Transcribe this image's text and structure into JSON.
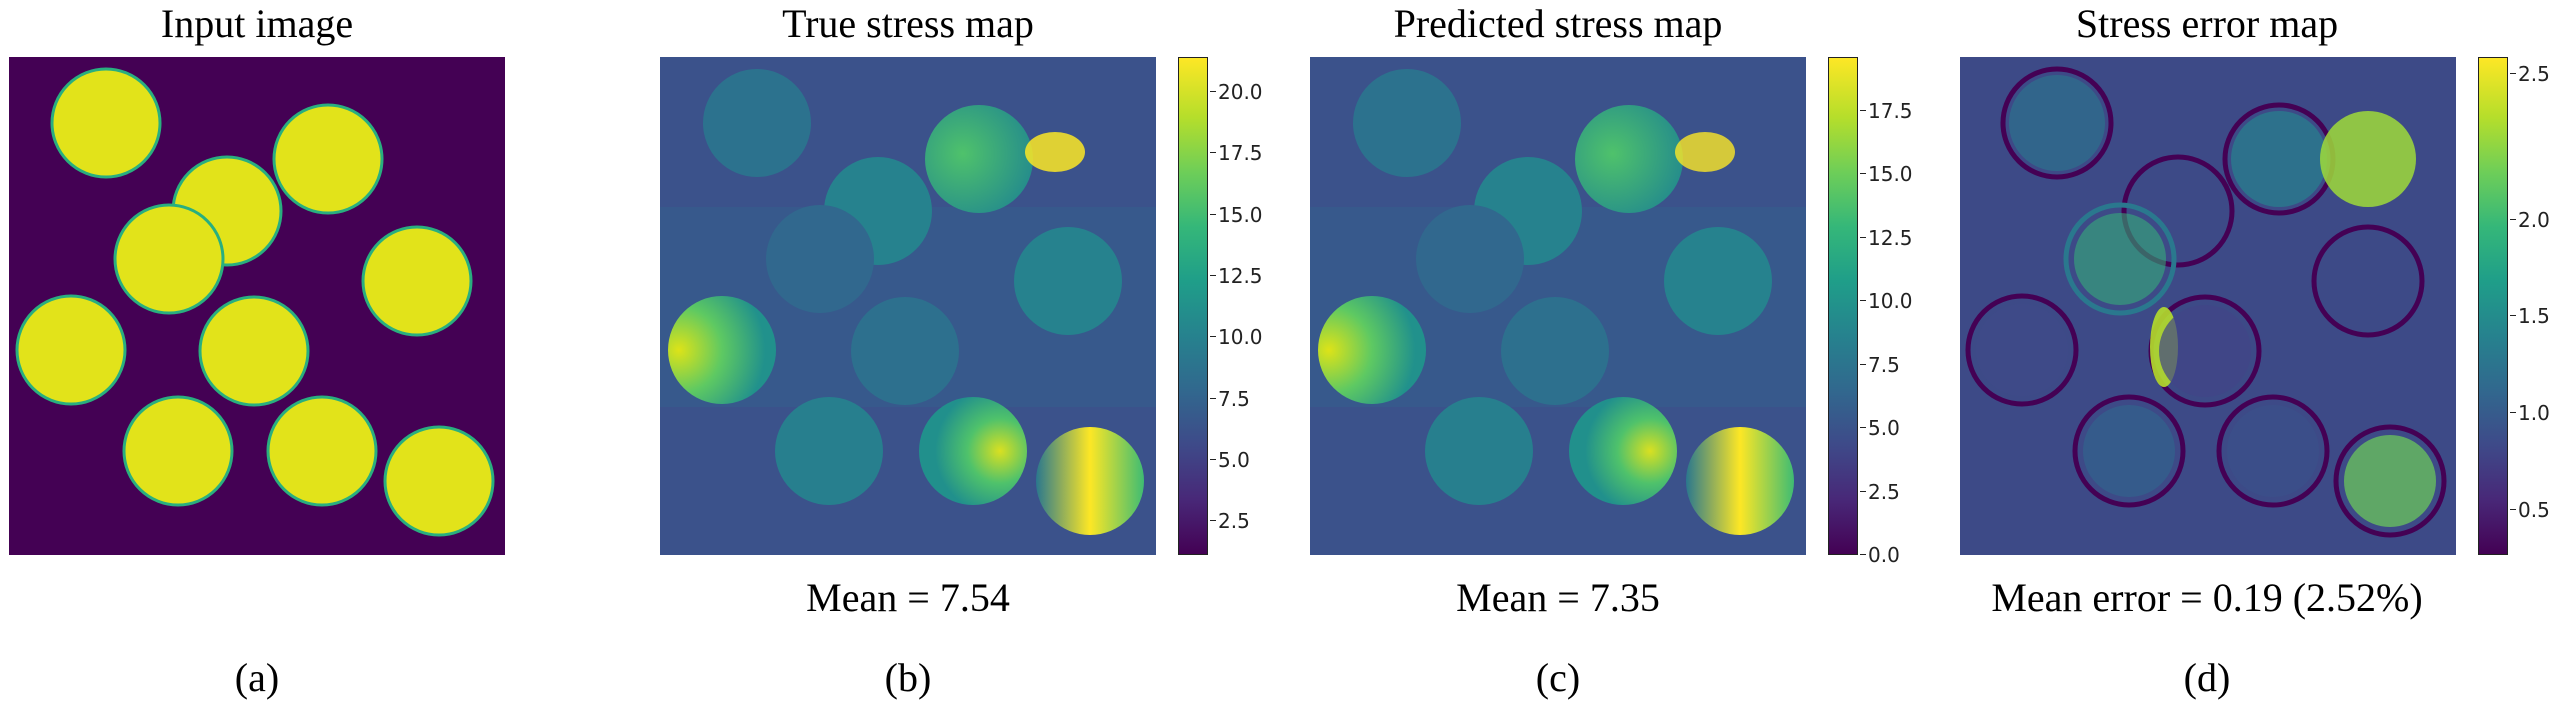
{
  "panels": [
    {
      "title": "Input image",
      "caption": "",
      "label": "(a)"
    },
    {
      "title": "True stress map",
      "caption": "Mean = 7.54",
      "label": "(b)",
      "colorbar": {
        "ticks": [
          "2.5",
          "5.0",
          "7.5",
          "10.0",
          "12.5",
          "15.0",
          "17.5",
          "20.0"
        ],
        "min": 0.3,
        "max": 20.6
      }
    },
    {
      "title": "Predicted stress map",
      "caption": "Mean = 7.35",
      "label": "(c)",
      "colorbar": {
        "ticks": [
          "0.0",
          "2.5",
          "5.0",
          "7.5",
          "10.0",
          "12.5",
          "15.0",
          "17.5"
        ],
        "min": 0.0,
        "max": 19.6
      }
    },
    {
      "title": "Stress error map",
      "caption": "Mean error = 0.19 (2.52%)",
      "label": "(d)",
      "colorbar": {
        "ticks": [
          "0.5",
          "1.0",
          "1.5",
          "2.0",
          "2.5"
        ],
        "min": 0.02,
        "max": 2.6
      }
    }
  ],
  "colors": {
    "matrix": "#440154",
    "particle": "#e2e31a",
    "edge": "#29af7f"
  }
}
